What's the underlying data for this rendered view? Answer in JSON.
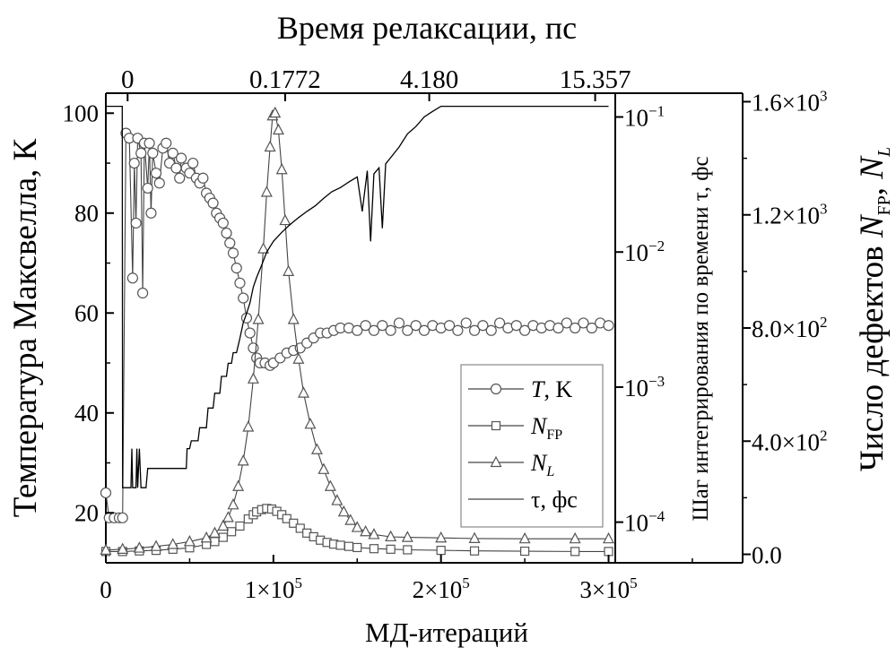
{
  "chart_data": {
    "type": "line",
    "xlabel": "МД-итераций",
    "x_range": [
      0,
      380000
    ],
    "x_ticks": [
      {
        "value": 0,
        "label": "0"
      },
      {
        "value": 100000,
        "label": "1×10",
        "sup": "5"
      },
      {
        "value": 200000,
        "label": "2×10",
        "sup": "5"
      },
      {
        "value": 300000,
        "label": "3×10",
        "sup": "5"
      }
    ],
    "top_axis": {
      "label": "Время релаксации, пс",
      "ticks": [
        {
          "at": 13000,
          "label": "0"
        },
        {
          "at": 107000,
          "label": "0.1772"
        },
        {
          "at": 193000,
          "label": "4.180"
        },
        {
          "at": 292000,
          "label": "15.357"
        }
      ]
    },
    "left_axis": {
      "label": "Температура Максвелла, К",
      "range": [
        10,
        104
      ],
      "ticks": [
        20,
        40,
        60,
        80,
        100
      ]
    },
    "middle_axis": {
      "label": "Шаг интегрирования по времени τ, фс",
      "scale": "log",
      "range": [
        5e-05,
        0.15
      ],
      "ticks": [
        {
          "value": 0.1,
          "base": "10",
          "exp": "−1"
        },
        {
          "value": 0.01,
          "base": "10",
          "exp": "−2"
        },
        {
          "value": 0.001,
          "base": "10",
          "exp": "−3"
        },
        {
          "value": 0.0001,
          "base": "10",
          "exp": "−4"
        }
      ]
    },
    "right_axis": {
      "label_main": "Число дефектов ",
      "label_nfp": "N",
      "label_nfp_sub": "FP",
      "label_sep": ", ",
      "label_nl": "N",
      "label_nl_sub": "L",
      "range": [
        -30,
        1630
      ],
      "ticks": [
        {
          "value": 0,
          "label": "0.0"
        },
        {
          "value": 400,
          "label": "4.0×10",
          "sup": "2"
        },
        {
          "value": 800,
          "label": "8.0×10",
          "sup": "2"
        },
        {
          "value": 1200,
          "label": "1.2×10",
          "sup": "3"
        },
        {
          "value": 1600,
          "label": "1.6×10",
          "sup": "3"
        }
      ]
    },
    "legend": {
      "position": "lower-right",
      "entries": [
        {
          "key": "T",
          "italic": "T",
          "rest": ", K",
          "marker": "circle"
        },
        {
          "key": "NFP",
          "italic": "N",
          "sub": "FP",
          "rest": "",
          "marker": "square"
        },
        {
          "key": "NL",
          "italic": "N",
          "sub": "L",
          "rest": "",
          "marker": "triangle"
        },
        {
          "key": "tau",
          "italic": "",
          "rest": "τ, фс",
          "marker": "none"
        }
      ]
    },
    "series": [
      {
        "name": "T, K",
        "axis": "left",
        "marker": "circle",
        "points": [
          [
            0,
            24
          ],
          [
            2000,
            19
          ],
          [
            5000,
            19
          ],
          [
            8000,
            19
          ],
          [
            10000,
            19
          ],
          [
            12000,
            96
          ],
          [
            14000,
            95
          ],
          [
            16000,
            67
          ],
          [
            17000,
            90
          ],
          [
            18000,
            78
          ],
          [
            19000,
            95
          ],
          [
            21000,
            92
          ],
          [
            22000,
            64
          ],
          [
            23000,
            94
          ],
          [
            25000,
            85
          ],
          [
            26000,
            94
          ],
          [
            27000,
            80
          ],
          [
            28000,
            92
          ],
          [
            30000,
            88
          ],
          [
            32000,
            86
          ],
          [
            34000,
            93
          ],
          [
            36000,
            94
          ],
          [
            38000,
            90
          ],
          [
            40000,
            92
          ],
          [
            42000,
            89
          ],
          [
            44000,
            87
          ],
          [
            45000,
            91
          ],
          [
            48000,
            89
          ],
          [
            50000,
            88
          ],
          [
            52000,
            90
          ],
          [
            54000,
            87
          ],
          [
            56000,
            86
          ],
          [
            58000,
            87
          ],
          [
            60000,
            84
          ],
          [
            62000,
            83
          ],
          [
            64000,
            82
          ],
          [
            66000,
            80
          ],
          [
            68000,
            79
          ],
          [
            70000,
            78
          ],
          [
            72000,
            76
          ],
          [
            74000,
            74
          ],
          [
            76000,
            72
          ],
          [
            78000,
            69
          ],
          [
            80000,
            66
          ],
          [
            82000,
            63
          ],
          [
            84000,
            59
          ],
          [
            86000,
            56
          ],
          [
            88000,
            53
          ],
          [
            90000,
            51
          ],
          [
            92000,
            50
          ],
          [
            95000,
            50
          ],
          [
            98000,
            49.5
          ],
          [
            100000,
            50
          ],
          [
            104000,
            51
          ],
          [
            108000,
            52
          ],
          [
            112000,
            52.5
          ],
          [
            116000,
            53
          ],
          [
            120000,
            54
          ],
          [
            124000,
            55
          ],
          [
            128000,
            56
          ],
          [
            132000,
            56
          ],
          [
            136000,
            56.5
          ],
          [
            140000,
            57
          ],
          [
            145000,
            57
          ],
          [
            150000,
            56.5
          ],
          [
            155000,
            57.5
          ],
          [
            160000,
            56.5
          ],
          [
            165000,
            57.5
          ],
          [
            170000,
            56.5
          ],
          [
            175000,
            58
          ],
          [
            180000,
            56.5
          ],
          [
            185000,
            57.5
          ],
          [
            190000,
            56.5
          ],
          [
            195000,
            57.5
          ],
          [
            200000,
            57
          ],
          [
            205000,
            57.5
          ],
          [
            210000,
            56.5
          ],
          [
            215000,
            58
          ],
          [
            220000,
            56.5
          ],
          [
            225000,
            57.5
          ],
          [
            230000,
            56.5
          ],
          [
            235000,
            58
          ],
          [
            240000,
            57
          ],
          [
            245000,
            57.5
          ],
          [
            250000,
            56.5
          ],
          [
            255000,
            57.5
          ],
          [
            260000,
            57
          ],
          [
            265000,
            57.5
          ],
          [
            270000,
            57
          ],
          [
            275000,
            58
          ],
          [
            280000,
            57
          ],
          [
            285000,
            58
          ],
          [
            290000,
            57
          ],
          [
            295000,
            58
          ],
          [
            300000,
            57.5
          ]
        ]
      },
      {
        "name": "NFP",
        "axis": "right",
        "marker": "square",
        "points": [
          [
            0,
            10
          ],
          [
            10000,
            10
          ],
          [
            20000,
            12
          ],
          [
            30000,
            14
          ],
          [
            40000,
            18
          ],
          [
            50000,
            23
          ],
          [
            60000,
            35
          ],
          [
            65000,
            45
          ],
          [
            70000,
            60
          ],
          [
            75000,
            80
          ],
          [
            80000,
            100
          ],
          [
            85000,
            125
          ],
          [
            88000,
            140
          ],
          [
            90000,
            150
          ],
          [
            93000,
            158
          ],
          [
            96000,
            162
          ],
          [
            99000,
            160
          ],
          [
            102000,
            152
          ],
          [
            105000,
            140
          ],
          [
            108000,
            126
          ],
          [
            112000,
            110
          ],
          [
            116000,
            92
          ],
          [
            120000,
            75
          ],
          [
            124000,
            62
          ],
          [
            128000,
            50
          ],
          [
            132000,
            42
          ],
          [
            136000,
            36
          ],
          [
            140000,
            32
          ],
          [
            145000,
            28
          ],
          [
            150000,
            24
          ],
          [
            160000,
            20
          ],
          [
            170000,
            18
          ],
          [
            180000,
            16
          ],
          [
            200000,
            14
          ],
          [
            220000,
            12
          ],
          [
            250000,
            11
          ],
          [
            280000,
            10
          ],
          [
            300000,
            10
          ]
        ]
      },
      {
        "name": "NL",
        "axis": "right",
        "marker": "triangle",
        "points": [
          [
            0,
            15
          ],
          [
            10000,
            18
          ],
          [
            20000,
            22
          ],
          [
            30000,
            28
          ],
          [
            40000,
            35
          ],
          [
            50000,
            45
          ],
          [
            60000,
            58
          ],
          [
            65000,
            75
          ],
          [
            70000,
            100
          ],
          [
            73000,
            130
          ],
          [
            76000,
            175
          ],
          [
            79000,
            240
          ],
          [
            82000,
            330
          ],
          [
            85000,
            450
          ],
          [
            88000,
            620
          ],
          [
            91000,
            830
          ],
          [
            94000,
            1080
          ],
          [
            96000,
            1280
          ],
          [
            98000,
            1440
          ],
          [
            99500,
            1550
          ],
          [
            101000,
            1560
          ],
          [
            103000,
            1500
          ],
          [
            105000,
            1360
          ],
          [
            107000,
            1180
          ],
          [
            109000,
            1000
          ],
          [
            112000,
            830
          ],
          [
            115000,
            690
          ],
          [
            118000,
            570
          ],
          [
            122000,
            460
          ],
          [
            126000,
            370
          ],
          [
            130000,
            300
          ],
          [
            134000,
            240
          ],
          [
            138000,
            190
          ],
          [
            142000,
            150
          ],
          [
            146000,
            120
          ],
          [
            150000,
            95
          ],
          [
            155000,
            80
          ],
          [
            160000,
            70
          ],
          [
            170000,
            62
          ],
          [
            180000,
            60
          ],
          [
            200000,
            58
          ],
          [
            220000,
            56
          ],
          [
            250000,
            55
          ],
          [
            280000,
            55
          ],
          [
            300000,
            55
          ]
        ]
      },
      {
        "name": "τ, фс",
        "axis": "middle",
        "marker": "none",
        "points": [
          [
            0,
            0.12
          ],
          [
            5000,
            0.12
          ],
          [
            9800,
            0.12
          ],
          [
            10000,
            0.00018
          ],
          [
            15000,
            0.00018
          ],
          [
            15500,
            0.00035
          ],
          [
            16000,
            0.00018
          ],
          [
            18000,
            0.00018
          ],
          [
            18500,
            0.00035
          ],
          [
            19000,
            0.00018
          ],
          [
            20000,
            0.00035
          ],
          [
            21000,
            0.00018
          ],
          [
            24000,
            0.00018
          ],
          [
            25000,
            0.00025
          ],
          [
            48000,
            0.00025
          ],
          [
            48500,
            0.00035
          ],
          [
            50000,
            0.00035
          ],
          [
            51000,
            0.0004
          ],
          [
            55000,
            0.0004
          ],
          [
            56000,
            0.0005
          ],
          [
            60000,
            0.0005
          ],
          [
            61000,
            0.0007
          ],
          [
            64000,
            0.0007
          ],
          [
            65000,
            0.0009
          ],
          [
            68000,
            0.0009
          ],
          [
            69000,
            0.0012
          ],
          [
            72000,
            0.0012
          ],
          [
            73000,
            0.0015
          ],
          [
            75000,
            0.0015
          ],
          [
            76000,
            0.0018
          ],
          [
            78000,
            0.0018
          ],
          [
            80000,
            0.0023
          ],
          [
            82000,
            0.003
          ],
          [
            84000,
            0.0035
          ],
          [
            86000,
            0.0042
          ],
          [
            88000,
            0.0055
          ],
          [
            90000,
            0.0065
          ],
          [
            93000,
            0.008
          ],
          [
            96000,
            0.01
          ],
          [
            100000,
            0.012
          ],
          [
            105000,
            0.014
          ],
          [
            110000,
            0.016
          ],
          [
            115000,
            0.018
          ],
          [
            120000,
            0.02
          ],
          [
            125000,
            0.022
          ],
          [
            130000,
            0.025
          ],
          [
            135000,
            0.028
          ],
          [
            140000,
            0.03
          ],
          [
            145000,
            0.033
          ],
          [
            150000,
            0.036
          ],
          [
            153000,
            0.02
          ],
          [
            156000,
            0.04
          ],
          [
            158000,
            0.012
          ],
          [
            160000,
            0.038
          ],
          [
            163000,
            0.042
          ],
          [
            165000,
            0.015
          ],
          [
            167000,
            0.045
          ],
          [
            170000,
            0.05
          ],
          [
            175000,
            0.06
          ],
          [
            180000,
            0.075
          ],
          [
            185000,
            0.085
          ],
          [
            190000,
            0.1
          ],
          [
            195000,
            0.11
          ],
          [
            200000,
            0.12
          ],
          [
            220000,
            0.12
          ],
          [
            250000,
            0.12
          ],
          [
            280000,
            0.12
          ],
          [
            300000,
            0.12
          ]
        ]
      }
    ]
  }
}
